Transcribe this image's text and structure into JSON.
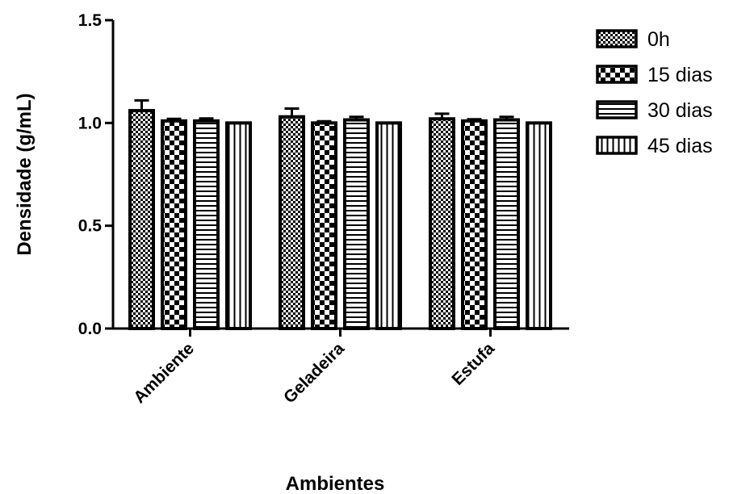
{
  "chart_data": {
    "type": "bar",
    "xlabel": "Ambientes",
    "ylabel": "Densidade (g/mL)",
    "ylim": [
      0,
      1.5
    ],
    "yticks": [
      "0.0",
      "0.5",
      "1.0",
      "1.5"
    ],
    "yticks_values": [
      0,
      0.5,
      1.0,
      1.5
    ],
    "grid": false,
    "legend_position": "top-right",
    "categories": [
      "Ambiente",
      "Geladeira",
      "Estufa"
    ],
    "series": [
      {
        "name": "0h",
        "pattern": "checker",
        "values": [
          1.06,
          1.03,
          1.02
        ],
        "errors": [
          0.05,
          0.04,
          0.025
        ]
      },
      {
        "name": "15 dias",
        "pattern": "bigchecker",
        "values": [
          1.01,
          1.0,
          1.01
        ],
        "errors": [
          0.01,
          0.008,
          0.008
        ]
      },
      {
        "name": "30 dias",
        "pattern": "hlines",
        "values": [
          1.01,
          1.015,
          1.015
        ],
        "errors": [
          0.012,
          0.015,
          0.015
        ]
      },
      {
        "name": "45 dias",
        "pattern": "vlines",
        "values": [
          1.0,
          1.0,
          1.0
        ],
        "errors": [
          0,
          0,
          0
        ]
      }
    ],
    "colors": {
      "stroke": "#000000",
      "background": "#ffffff"
    }
  }
}
